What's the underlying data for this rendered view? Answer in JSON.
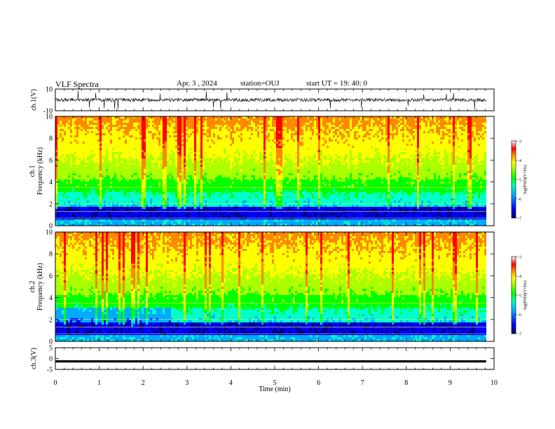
{
  "header": {
    "title": "VLF Spectra",
    "date": "Apr. 3 , 2024",
    "station": "station=OUJ",
    "start_time": "start UT = 19: 40: 0"
  },
  "colors": {
    "spectrogram_scale": [
      "#000080",
      "#0000ff",
      "#00aaff",
      "#00ffcc",
      "#00ff00",
      "#aaff00",
      "#ffff00",
      "#ff8800",
      "#ff0000",
      "#ffffff"
    ],
    "trace": "#000000"
  },
  "chart_data": [
    {
      "type": "line",
      "name": "ch1-waveform",
      "ylabel": "ch.1(V)",
      "ylim": [
        -10,
        10
      ],
      "yticks": [
        "10",
        "-10"
      ],
      "xlim": [
        0,
        10
      ],
      "note_level": "noise around 0 V, roughly ±2 V with spikes to ±8 V",
      "data_end_min": 9.82
    },
    {
      "type": "heatmap",
      "name": "ch1-spectrogram",
      "ylabel": "ch.1 Frequency (kHz)",
      "ylim": [
        0,
        10
      ],
      "yticks": [
        "0",
        "2",
        "4",
        "6",
        "8",
        "10"
      ],
      "xlim": [
        0,
        10
      ],
      "data_end_min": 9.82,
      "colorbar": {
        "label": "log(PSD)(V²/Hz)",
        "range": [
          -7,
          -3
        ],
        "ticks": [
          "-3",
          "-4",
          "-5",
          "-6",
          "-7"
        ]
      }
    },
    {
      "type": "heatmap",
      "name": "ch2-spectrogram",
      "ylabel": "ch.2 Frequency (kHz)",
      "ylim": [
        0,
        10
      ],
      "yticks": [
        "0",
        "2",
        "4",
        "6",
        "8",
        "10"
      ],
      "xlim": [
        0,
        10
      ],
      "data_end_min": 9.82,
      "colorbar": {
        "label": "log(PSD)(V²/Hz)",
        "range": [
          -7,
          -3
        ],
        "ticks": [
          "-3",
          "-4",
          "-5",
          "-6",
          "-7"
        ]
      }
    },
    {
      "type": "line",
      "name": "ch3-waveform",
      "ylabel": "ch.3(V)",
      "ylim": [
        -5,
        5
      ],
      "yticks": [
        "5",
        "0",
        "-5"
      ],
      "xlim": [
        0,
        10
      ],
      "level": -1.3,
      "data_end_min": 9.82
    }
  ],
  "xaxis": {
    "label": "Time (min)",
    "ticks": [
      "0",
      "1",
      "2",
      "3",
      "4",
      "5",
      "6",
      "7",
      "8",
      "9",
      "10"
    ]
  }
}
